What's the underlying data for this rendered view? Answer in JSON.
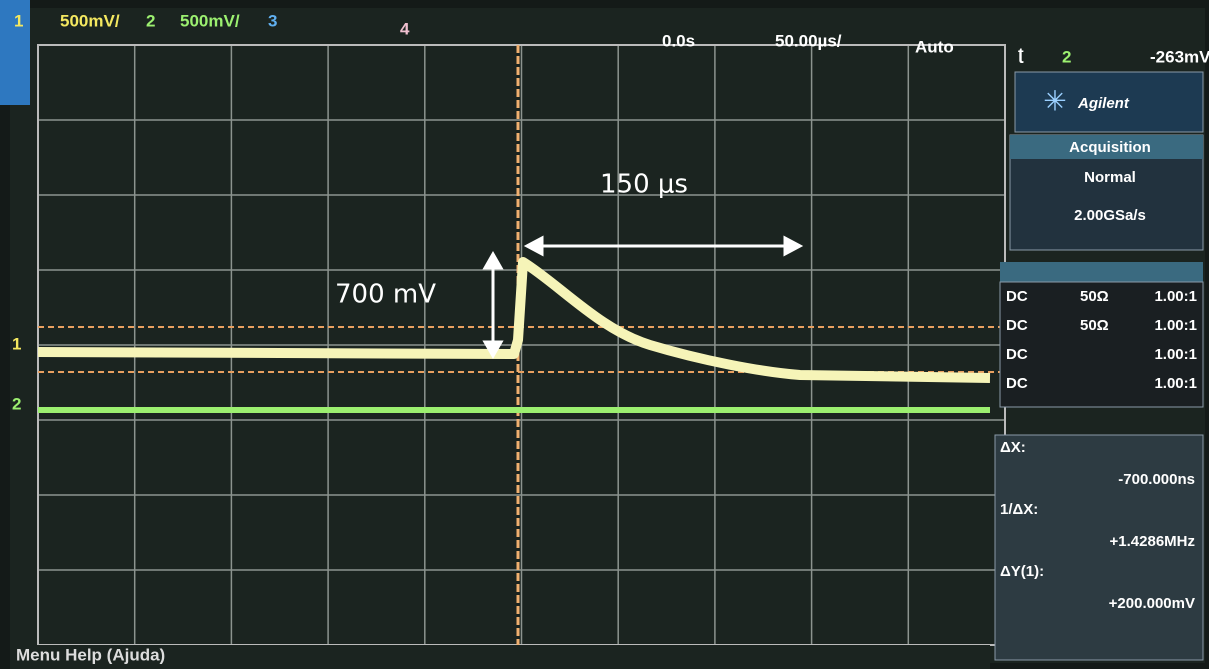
{
  "top_bar": {
    "ch1": "1",
    "ch1_scale": "500mV/",
    "ch2": "2",
    "ch2_scale": "500mV/",
    "ch3": "3",
    "ch4": "4",
    "time_delay": "0.0s",
    "time_scale": "50.00µs/",
    "trigger_mode": "Auto",
    "trigger_source": "2",
    "trigger_level": "-263mV"
  },
  "markers": [
    "1",
    "2"
  ],
  "side_panel": {
    "brand": "Agilent",
    "acquisition": {
      "title": "Acquisition",
      "mode": "Normal",
      "rate": "2.00GSa/s"
    },
    "channels": [
      {
        "coupling": "DC",
        "impedance": "50Ω",
        "probe": "1.00:1"
      },
      {
        "coupling": "DC",
        "impedance": "50Ω",
        "probe": "1.00:1"
      },
      {
        "coupling": "DC",
        "probe": "1.00:1"
      },
      {
        "coupling": "DC",
        "probe": "1.00:1"
      }
    ],
    "measurements": [
      {
        "label": "ΔX:",
        "value": "-700.000ns"
      },
      {
        "label": "1/ΔX:",
        "value": "+1.4286MHz"
      },
      {
        "label": "ΔY(1):",
        "value": "+200.000mV"
      }
    ]
  },
  "annotations": {
    "time": "150 μs",
    "voltage": "700 mV"
  },
  "footer": "Menu Help (Ajuda)"
}
